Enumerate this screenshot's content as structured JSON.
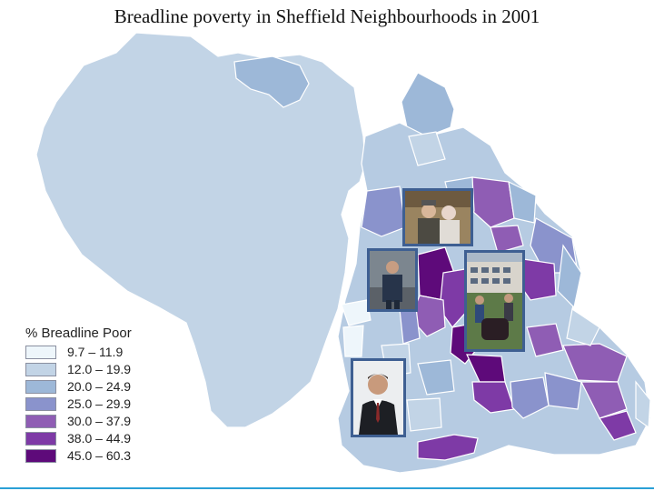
{
  "title": "Breadline poverty in Sheffield Neighbourhoods in 2001",
  "legend": {
    "title": "% Breadline Poor",
    "classes": [
      {
        "range": "9.7 – 11.9",
        "color": "#eef6fb"
      },
      {
        "range": "12.0 – 19.9",
        "color": "#c2d4e6"
      },
      {
        "range": "20.0 – 24.9",
        "color": "#9db8d8"
      },
      {
        "range": "25.0 – 29.9",
        "color": "#8a93cc"
      },
      {
        "range": "30.0 – 37.9",
        "color": "#8f5db4"
      },
      {
        "range": "38.0 – 44.9",
        "color": "#7e3aa6"
      },
      {
        "range": "45.0 – 60.3",
        "color": "#5e0a7a"
      }
    ]
  },
  "colors": {
    "boundary": "#ffffff",
    "photo_frame": "#3e5f92"
  },
  "photos": [
    {
      "name": "elderly-couple-photo"
    },
    {
      "name": "worker-photo"
    },
    {
      "name": "housing-estate-photo"
    },
    {
      "name": "businessman-photo"
    }
  ]
}
